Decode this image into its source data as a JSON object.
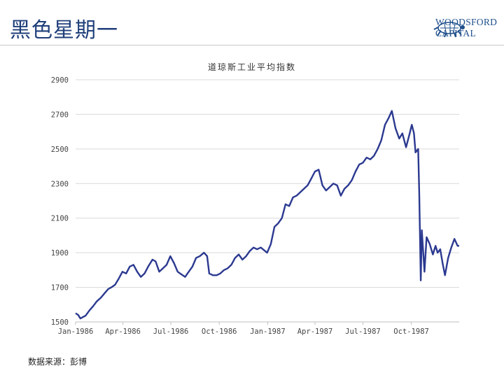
{
  "header": {
    "title": "黑色星期一",
    "logo_line1": "WOODSFORD",
    "logo_line2": "CAPITAL"
  },
  "footer": {
    "source": "数据来源：彭博"
  },
  "colors": {
    "series": "#2b3990",
    "title": "#1f3f7a",
    "grid": "#d9d9d9"
  },
  "chart_data": {
    "type": "line",
    "title": "道琼斯工业平均指数",
    "xlabel": "",
    "ylabel": "",
    "x_ticks": [
      "Jan-1986",
      "Apr-1986",
      "Jul-1986",
      "Oct-1986",
      "Jan-1987",
      "Apr-1987",
      "Jul-1987",
      "Oct-1987"
    ],
    "y_ticks": [
      1500,
      1700,
      1900,
      2100,
      2300,
      2500,
      2700,
      2900
    ],
    "ylim": [
      1500,
      2900
    ],
    "xlim": [
      "1986-01-01",
      "1987-12-31"
    ],
    "grid": true,
    "series": [
      {
        "name": "",
        "points": [
          [
            "1986-01-01",
            1550
          ],
          [
            "1986-01-06",
            1540
          ],
          [
            "1986-01-10",
            1520
          ],
          [
            "1986-01-15",
            1528
          ],
          [
            "1986-01-20",
            1536
          ],
          [
            "1986-01-27",
            1565
          ],
          [
            "1986-02-03",
            1590
          ],
          [
            "1986-02-10",
            1618
          ],
          [
            "1986-02-18",
            1640
          ],
          [
            "1986-02-25",
            1665
          ],
          [
            "1986-03-04",
            1690
          ],
          [
            "1986-03-10",
            1700
          ],
          [
            "1986-03-17",
            1715
          ],
          [
            "1986-03-24",
            1750
          ],
          [
            "1986-03-31",
            1790
          ],
          [
            "1986-04-07",
            1780
          ],
          [
            "1986-04-14",
            1820
          ],
          [
            "1986-04-21",
            1830
          ],
          [
            "1986-04-28",
            1790
          ],
          [
            "1986-05-05",
            1760
          ],
          [
            "1986-05-12",
            1780
          ],
          [
            "1986-05-19",
            1820
          ],
          [
            "1986-05-27",
            1860
          ],
          [
            "1986-06-02",
            1850
          ],
          [
            "1986-06-09",
            1790
          ],
          [
            "1986-06-16",
            1810
          ],
          [
            "1986-06-23",
            1830
          ],
          [
            "1986-06-30",
            1880
          ],
          [
            "1986-07-07",
            1840
          ],
          [
            "1986-07-14",
            1790
          ],
          [
            "1986-07-21",
            1775
          ],
          [
            "1986-07-28",
            1760
          ],
          [
            "1986-08-04",
            1790
          ],
          [
            "1986-08-11",
            1820
          ],
          [
            "1986-08-18",
            1870
          ],
          [
            "1986-08-25",
            1880
          ],
          [
            "1986-09-02",
            1900
          ],
          [
            "1986-09-08",
            1880
          ],
          [
            "1986-09-12",
            1780
          ],
          [
            "1986-09-19",
            1770
          ],
          [
            "1986-09-26",
            1770
          ],
          [
            "1986-10-03",
            1780
          ],
          [
            "1986-10-10",
            1800
          ],
          [
            "1986-10-17",
            1810
          ],
          [
            "1986-10-24",
            1830
          ],
          [
            "1986-10-31",
            1870
          ],
          [
            "1986-11-07",
            1890
          ],
          [
            "1986-11-14",
            1860
          ],
          [
            "1986-11-21",
            1880
          ],
          [
            "1986-11-28",
            1910
          ],
          [
            "1986-12-05",
            1930
          ],
          [
            "1986-12-12",
            1920
          ],
          [
            "1986-12-19",
            1930
          ],
          [
            "1986-12-31",
            1900
          ],
          [
            "1987-01-07",
            1950
          ],
          [
            "1987-01-14",
            2050
          ],
          [
            "1987-01-21",
            2070
          ],
          [
            "1987-01-28",
            2100
          ],
          [
            "1987-02-04",
            2180
          ],
          [
            "1987-02-11",
            2170
          ],
          [
            "1987-02-18",
            2220
          ],
          [
            "1987-02-25",
            2230
          ],
          [
            "1987-03-04",
            2250
          ],
          [
            "1987-03-11",
            2270
          ],
          [
            "1987-03-18",
            2290
          ],
          [
            "1987-03-25",
            2330
          ],
          [
            "1987-04-01",
            2370
          ],
          [
            "1987-04-08",
            2380
          ],
          [
            "1987-04-15",
            2290
          ],
          [
            "1987-04-22",
            2260
          ],
          [
            "1987-04-29",
            2280
          ],
          [
            "1987-05-06",
            2300
          ],
          [
            "1987-05-13",
            2290
          ],
          [
            "1987-05-20",
            2230
          ],
          [
            "1987-05-27",
            2270
          ],
          [
            "1987-06-03",
            2290
          ],
          [
            "1987-06-10",
            2320
          ],
          [
            "1987-06-17",
            2370
          ],
          [
            "1987-06-24",
            2410
          ],
          [
            "1987-07-01",
            2420
          ],
          [
            "1987-07-08",
            2450
          ],
          [
            "1987-07-15",
            2440
          ],
          [
            "1987-07-22",
            2460
          ],
          [
            "1987-07-29",
            2500
          ],
          [
            "1987-08-05",
            2550
          ],
          [
            "1987-08-12",
            2640
          ],
          [
            "1987-08-19",
            2680
          ],
          [
            "1987-08-25",
            2720
          ],
          [
            "1987-09-01",
            2620
          ],
          [
            "1987-09-08",
            2560
          ],
          [
            "1987-09-14",
            2590
          ],
          [
            "1987-09-21",
            2510
          ],
          [
            "1987-09-28",
            2590
          ],
          [
            "1987-10-02",
            2640
          ],
          [
            "1987-10-06",
            2590
          ],
          [
            "1987-10-09",
            2480
          ],
          [
            "1987-10-14",
            2500
          ],
          [
            "1987-10-16",
            2250
          ],
          [
            "1987-10-19",
            1740
          ],
          [
            "1987-10-21",
            2030
          ],
          [
            "1987-10-26",
            1790
          ],
          [
            "1987-10-30",
            1990
          ],
          [
            "1987-11-05",
            1950
          ],
          [
            "1987-11-11",
            1890
          ],
          [
            "1987-11-16",
            1940
          ],
          [
            "1987-11-20",
            1900
          ],
          [
            "1987-11-25",
            1920
          ],
          [
            "1987-11-30",
            1830
          ],
          [
            "1987-12-04",
            1770
          ],
          [
            "1987-12-10",
            1870
          ],
          [
            "1987-12-16",
            1930
          ],
          [
            "1987-12-22",
            1980
          ],
          [
            "1987-12-28",
            1940
          ],
          [
            "1987-12-31",
            1940
          ]
        ]
      }
    ]
  }
}
